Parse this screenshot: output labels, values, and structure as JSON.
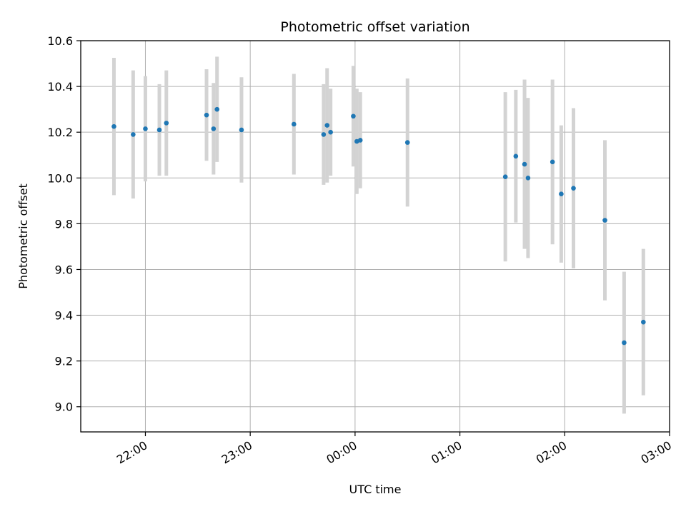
{
  "chart_data": {
    "type": "scatter",
    "title": "Photometric offset variation",
    "xlabel": "UTC time",
    "ylabel": "Photometric offset",
    "xlim": [
      "21:23",
      "03:00"
    ],
    "ylim": [
      8.89,
      10.6
    ],
    "x_ticks": [
      "22:00",
      "23:00",
      "00:00",
      "01:00",
      "02:00",
      "03:00"
    ],
    "y_ticks": [
      "9.0",
      "9.2",
      "9.4",
      "9.6",
      "9.8",
      "10.0",
      "10.2",
      "10.4",
      "10.6"
    ],
    "grid": true,
    "colors": {
      "point": "#1f77b4",
      "errorbar": "#d3d3d3",
      "grid": "#b0b0b0"
    },
    "points": [
      {
        "time": "21:42",
        "y": 10.225,
        "err": 0.3
      },
      {
        "time": "21:53",
        "y": 10.19,
        "err": 0.28
      },
      {
        "time": "22:00",
        "y": 10.215,
        "err": 0.23
      },
      {
        "time": "22:08",
        "y": 10.21,
        "err": 0.2
      },
      {
        "time": "22:12",
        "y": 10.24,
        "err": 0.23
      },
      {
        "time": "22:35",
        "y": 10.275,
        "err": 0.2
      },
      {
        "time": "22:39",
        "y": 10.215,
        "err": 0.2
      },
      {
        "time": "22:41",
        "y": 10.3,
        "err": 0.23
      },
      {
        "time": "22:55",
        "y": 10.21,
        "err": 0.23
      },
      {
        "time": "23:25",
        "y": 10.235,
        "err": 0.22
      },
      {
        "time": "23:42",
        "y": 10.19,
        "err": 0.22
      },
      {
        "time": "23:44",
        "y": 10.23,
        "err": 0.25
      },
      {
        "time": "23:46",
        "y": 10.2,
        "err": 0.19
      },
      {
        "time": "23:59",
        "y": 10.27,
        "err": 0.22
      },
      {
        "time": "00:01",
        "y": 10.16,
        "err": 0.23
      },
      {
        "time": "00:03",
        "y": 10.165,
        "err": 0.21
      },
      {
        "time": "00:30",
        "y": 10.155,
        "err": 0.28
      },
      {
        "time": "01:26",
        "y": 10.005,
        "err": 0.37
      },
      {
        "time": "01:32",
        "y": 10.095,
        "err": 0.29
      },
      {
        "time": "01:37",
        "y": 10.06,
        "err": 0.37
      },
      {
        "time": "01:39",
        "y": 10.0,
        "err": 0.35
      },
      {
        "time": "01:53",
        "y": 10.07,
        "err": 0.36
      },
      {
        "time": "01:58",
        "y": 9.93,
        "err": 0.3
      },
      {
        "time": "02:05",
        "y": 9.955,
        "err": 0.35
      },
      {
        "time": "02:23",
        "y": 9.815,
        "err": 0.35
      },
      {
        "time": "02:34",
        "y": 9.28,
        "err": 0.31
      },
      {
        "time": "02:45",
        "y": 9.37,
        "err": 0.32
      }
    ]
  }
}
